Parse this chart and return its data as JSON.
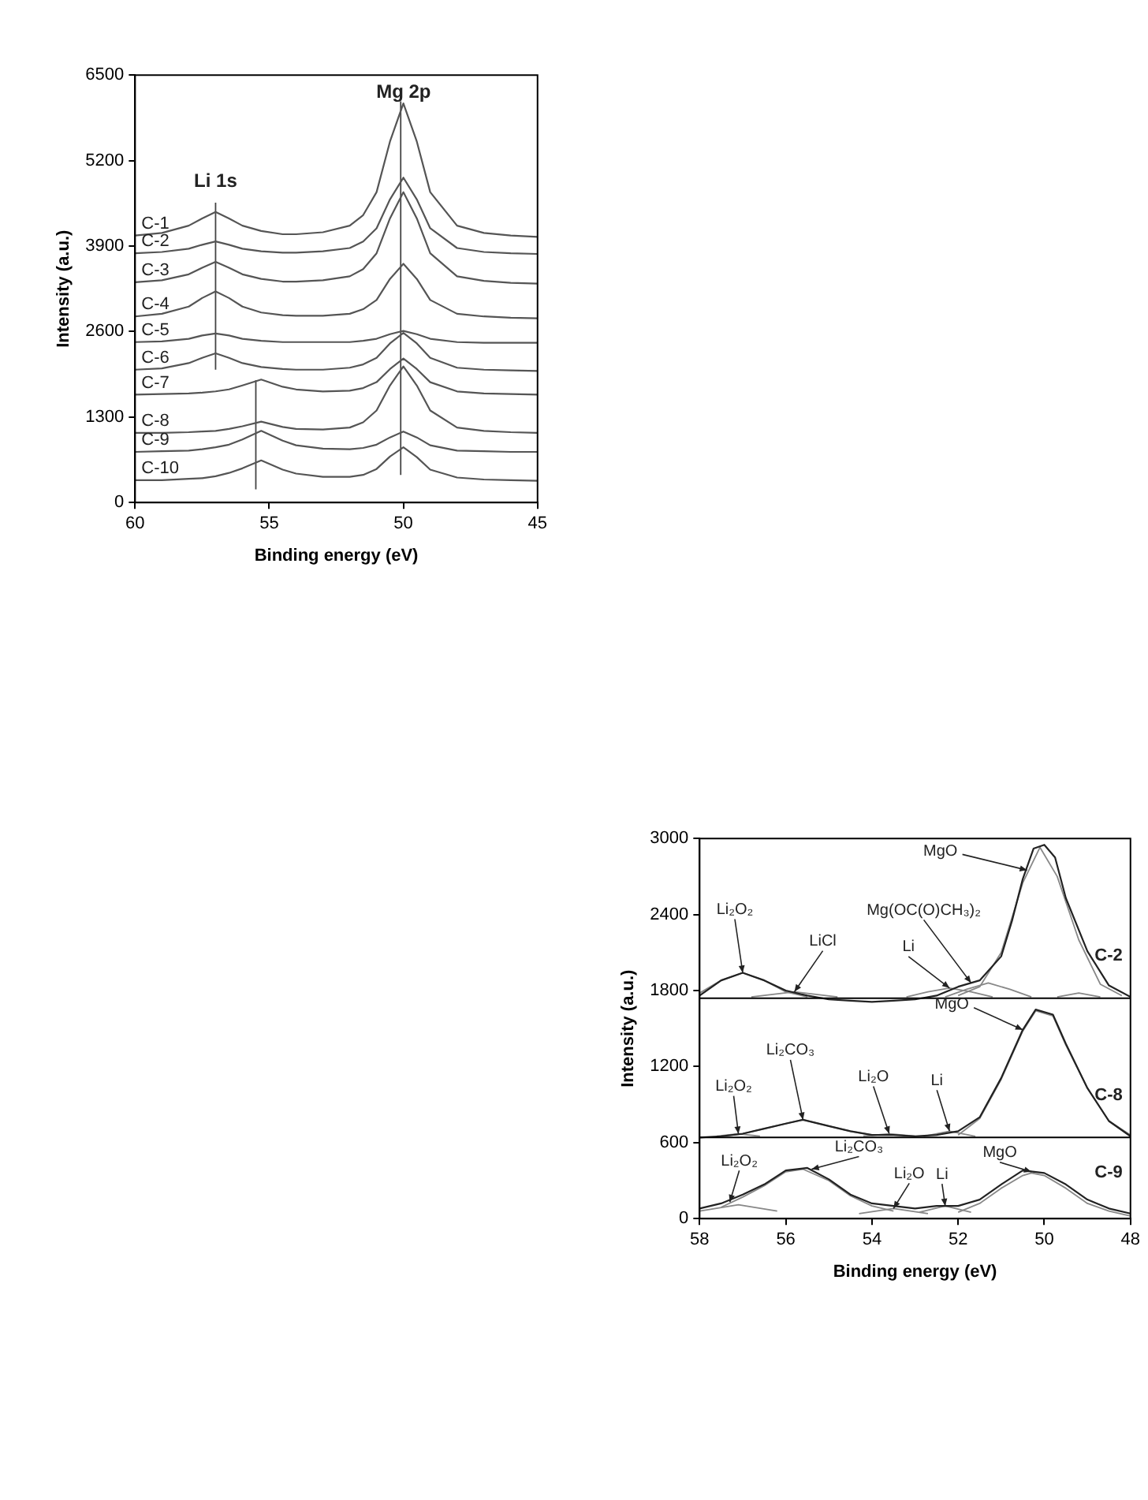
{
  "chart_data": [
    {
      "type": "line",
      "xlabel": "Binding energy (eV)",
      "ylabel": "Intensity (a.u.)",
      "xlim": [
        60,
        45
      ],
      "xticks": [
        60,
        55,
        50,
        45
      ],
      "ylim": [
        0,
        6500
      ],
      "yticks": [
        0,
        1300,
        2600,
        3900,
        5200,
        6500
      ],
      "grid": false,
      "legend": false,
      "marker": "none",
      "x": [
        60,
        59,
        58,
        57.5,
        57,
        56.5,
        56,
        55.3,
        54.5,
        54,
        53,
        52,
        51.5,
        51,
        50.5,
        50,
        49.5,
        49,
        48,
        47,
        46,
        45
      ],
      "series": [
        {
          "name": "C-1",
          "color": "#555555",
          "values": [
            4060,
            4100,
            4210,
            4320,
            4420,
            4320,
            4210,
            4130,
            4080,
            4080,
            4110,
            4210,
            4370,
            4720,
            5490,
            6070,
            5490,
            4720,
            4210,
            4100,
            4060,
            4040
          ]
        },
        {
          "name": "C-2",
          "color": "#555555",
          "values": [
            3790,
            3810,
            3860,
            3920,
            3970,
            3920,
            3860,
            3820,
            3800,
            3800,
            3820,
            3870,
            3970,
            4170,
            4610,
            4940,
            4610,
            4170,
            3870,
            3810,
            3790,
            3780
          ]
        },
        {
          "name": "C-3",
          "color": "#555555",
          "values": [
            3350,
            3380,
            3470,
            3570,
            3660,
            3570,
            3470,
            3400,
            3360,
            3360,
            3380,
            3440,
            3550,
            3790,
            4320,
            4720,
            4320,
            3790,
            3440,
            3370,
            3340,
            3330
          ]
        },
        {
          "name": "C-4",
          "color": "#555555",
          "values": [
            2830,
            2870,
            2980,
            3110,
            3210,
            3110,
            2980,
            2890,
            2850,
            2840,
            2840,
            2870,
            2940,
            3080,
            3400,
            3630,
            3400,
            3080,
            2870,
            2830,
            2810,
            2800
          ]
        },
        {
          "name": "C-5",
          "color": "#555555",
          "values": [
            2440,
            2450,
            2490,
            2540,
            2570,
            2540,
            2490,
            2460,
            2440,
            2440,
            2440,
            2440,
            2460,
            2490,
            2560,
            2610,
            2560,
            2490,
            2440,
            2430,
            2430,
            2430
          ]
        },
        {
          "name": "C-6",
          "color": "#555555",
          "values": [
            2020,
            2040,
            2120,
            2200,
            2270,
            2200,
            2120,
            2060,
            2030,
            2020,
            2020,
            2050,
            2100,
            2200,
            2420,
            2580,
            2420,
            2200,
            2050,
            2020,
            2010,
            2000
          ]
        },
        {
          "name": "C-7",
          "color": "#555555",
          "values": [
            1640,
            1650,
            1660,
            1670,
            1690,
            1720,
            1780,
            1870,
            1760,
            1720,
            1690,
            1700,
            1740,
            1830,
            2030,
            2190,
            2030,
            1830,
            1690,
            1660,
            1650,
            1640
          ]
        },
        {
          "name": "C-8",
          "color": "#555555",
          "values": [
            1060,
            1060,
            1070,
            1080,
            1090,
            1120,
            1160,
            1230,
            1150,
            1120,
            1110,
            1140,
            1220,
            1400,
            1780,
            2070,
            1780,
            1400,
            1140,
            1090,
            1070,
            1060
          ]
        },
        {
          "name": "C-9",
          "color": "#555555",
          "values": [
            770,
            780,
            790,
            810,
            840,
            880,
            960,
            1090,
            940,
            870,
            820,
            810,
            830,
            880,
            990,
            1080,
            990,
            870,
            790,
            780,
            770,
            770
          ]
        },
        {
          "name": "C-10",
          "color": "#555555",
          "values": [
            340,
            340,
            360,
            370,
            400,
            450,
            520,
            640,
            500,
            440,
            390,
            390,
            420,
            510,
            700,
            840,
            690,
            500,
            380,
            350,
            340,
            330
          ]
        },
        {
          "color": "#444444",
          "x": [
            57,
            57
          ],
          "values": [
            2020,
            4560
          ]
        },
        {
          "color": "#444444",
          "x": [
            55.5,
            55.5
          ],
          "values": [
            200,
            1860
          ]
        },
        {
          "color": "#444444",
          "x": [
            50.1,
            50.1
          ],
          "values": [
            420,
            6100
          ]
        }
      ],
      "annotations": [
        "Li 1s",
        "Mg 2p"
      ]
    },
    {
      "type": "line",
      "xlabel": "Binding energy (eV)",
      "ylabel": "Intensity (a.u.)",
      "xlim": [
        58,
        48
      ],
      "xticks": [
        58,
        56,
        54,
        52,
        50,
        48
      ],
      "ylim": [
        0,
        3000
      ],
      "yticks": [
        0,
        600,
        1200,
        1800,
        2400,
        3000
      ],
      "grid": false,
      "legend": false,
      "marker": "none",
      "series": [
        {
          "name": "C-2",
          "color": "#222222",
          "x": [
            58,
            57.5,
            57,
            56.5,
            56,
            55.5,
            55,
            54.5,
            54,
            53.5,
            53,
            52.5,
            52,
            51.5,
            51,
            50.75,
            50.5,
            50.25,
            50,
            49.75,
            49.5,
            49,
            48.5,
            48
          ],
          "values": [
            1760,
            1880,
            1940,
            1880,
            1800,
            1760,
            1730,
            1720,
            1710,
            1720,
            1730,
            1760,
            1830,
            1880,
            2070,
            2350,
            2680,
            2920,
            2950,
            2850,
            2530,
            2110,
            1840,
            1750
          ]
        },
        {
          "color": "#888888",
          "x": [
            58,
            57.5,
            57,
            56.5,
            56,
            55.5
          ],
          "values": [
            1780,
            1880,
            1940,
            1880,
            1790,
            1750
          ]
        },
        {
          "color": "#888888",
          "x": [
            56.8,
            56.3,
            55.8,
            55.3,
            54.8
          ],
          "values": [
            1750,
            1770,
            1790,
            1770,
            1750
          ]
        },
        {
          "color": "#888888",
          "x": [
            53.2,
            52.7,
            52.2,
            51.7,
            51.2
          ],
          "values": [
            1750,
            1790,
            1820,
            1790,
            1750
          ]
        },
        {
          "color": "#888888",
          "x": [
            52.3,
            51.8,
            51.3,
            50.8,
            50.3
          ],
          "values": [
            1750,
            1810,
            1860,
            1810,
            1750
          ]
        },
        {
          "color": "#888888",
          "x": [
            52,
            51.5,
            51,
            50.5,
            50.1,
            49.7,
            49.2,
            48.7,
            48.2
          ],
          "values": [
            1760,
            1830,
            2100,
            2650,
            2930,
            2700,
            2200,
            1850,
            1760
          ]
        },
        {
          "color": "#888888",
          "x": [
            49.7,
            49.2,
            48.7
          ],
          "values": [
            1750,
            1780,
            1750
          ]
        },
        {
          "name": "C-8",
          "color": "#222222",
          "x": [
            58,
            57.5,
            57,
            56.5,
            56,
            55.6,
            55,
            54.5,
            54,
            53.5,
            53,
            52.5,
            52,
            51.5,
            51,
            50.5,
            50.2,
            49.8,
            49.5,
            49,
            48.5,
            48
          ],
          "values": [
            640,
            650,
            670,
            710,
            750,
            780,
            730,
            690,
            660,
            660,
            650,
            660,
            690,
            800,
            1110,
            1490,
            1650,
            1610,
            1380,
            1030,
            770,
            650
          ]
        },
        {
          "color": "#888888",
          "x": [
            57.6,
            57.1,
            56.6
          ],
          "values": [
            650,
            670,
            650
          ]
        },
        {
          "color": "#888888",
          "x": [
            57.5,
            57,
            56.5,
            56,
            55.6,
            55,
            54.5,
            54
          ],
          "values": [
            650,
            670,
            710,
            750,
            780,
            730,
            690,
            660
          ]
        },
        {
          "color": "#888888",
          "x": [
            54.2,
            53.6,
            53
          ],
          "values": [
            650,
            670,
            650
          ]
        },
        {
          "color": "#888888",
          "x": [
            52.8,
            52.2,
            51.6
          ],
          "values": [
            650,
            690,
            650
          ]
        },
        {
          "color": "#888888",
          "x": [
            52,
            51.5,
            51,
            50.5,
            50.2,
            49.8,
            49.5,
            49,
            48.5,
            48
          ],
          "values": [
            660,
            790,
            1100,
            1480,
            1640,
            1600,
            1370,
            1030,
            770,
            660
          ]
        },
        {
          "name": "C-9",
          "color": "#222222",
          "x": [
            58,
            57.5,
            57,
            56.5,
            56,
            55.5,
            55,
            54.5,
            54,
            53.5,
            53,
            52.5,
            52,
            51.5,
            51,
            50.5,
            50,
            49.5,
            49,
            48.5,
            48
          ],
          "values": [
            80,
            120,
            190,
            270,
            380,
            400,
            310,
            190,
            120,
            100,
            80,
            100,
            100,
            150,
            270,
            380,
            360,
            270,
            150,
            80,
            40
          ]
        },
        {
          "color": "#888888",
          "x": [
            58,
            57.1,
            56.2
          ],
          "values": [
            60,
            110,
            60
          ]
        },
        {
          "color": "#888888",
          "x": [
            57.5,
            57,
            56.5,
            56,
            55.6,
            55,
            54.5,
            54,
            53.5
          ],
          "values": [
            90,
            170,
            260,
            370,
            390,
            300,
            180,
            100,
            60
          ]
        },
        {
          "color": "#888888",
          "x": [
            54.3,
            53.5,
            52.7
          ],
          "values": [
            40,
            80,
            40
          ]
        },
        {
          "color": "#888888",
          "x": [
            52.9,
            52.3,
            51.7
          ],
          "values": [
            50,
            100,
            50
          ]
        },
        {
          "color": "#888888",
          "x": [
            52,
            51.5,
            51,
            50.5,
            50.3,
            50,
            49.5,
            49,
            48.5,
            48
          ],
          "values": [
            50,
            120,
            240,
            340,
            360,
            340,
            240,
            120,
            60,
            20
          ]
        }
      ],
      "ref_lines": [
        {
          "axis": "y",
          "value": 1740,
          "color": "#000000"
        },
        {
          "axis": "y",
          "value": 640,
          "color": "#000000"
        }
      ],
      "annotations": [
        {
          "text": "Li₂O₂",
          "x": 57,
          "y": 1940
        },
        {
          "text": "LiCl",
          "x": 55.8,
          "y": 1790
        },
        {
          "text": "Li",
          "x": 52.2,
          "y": 1820
        },
        {
          "text": "Mg(OC(O)CH₃)₂",
          "x": 51.7,
          "y": 1860
        },
        {
          "text": "MgO",
          "x": 50.4,
          "y": 2750
        },
        {
          "text": "Li₂O₂",
          "x": 57.1,
          "y": 670
        },
        {
          "text": "Li₂CO₃",
          "x": 55.6,
          "y": 780
        },
        {
          "text": "Li₂O",
          "x": 53.6,
          "y": 670
        },
        {
          "text": "Li",
          "x": 52.2,
          "y": 690
        },
        {
          "text": "MgO",
          "x": 50.5,
          "y": 1490
        },
        {
          "text": "Li₂O₂",
          "x": 57.3,
          "y": 130
        },
        {
          "text": "Li₂CO₃",
          "x": 55.4,
          "y": 390
        },
        {
          "text": "Li₂O",
          "x": 53.5,
          "y": 80
        },
        {
          "text": "Li",
          "x": 52.3,
          "y": 100
        },
        {
          "text": "MgO",
          "x": 50.3,
          "y": 370
        }
      ]
    }
  ]
}
